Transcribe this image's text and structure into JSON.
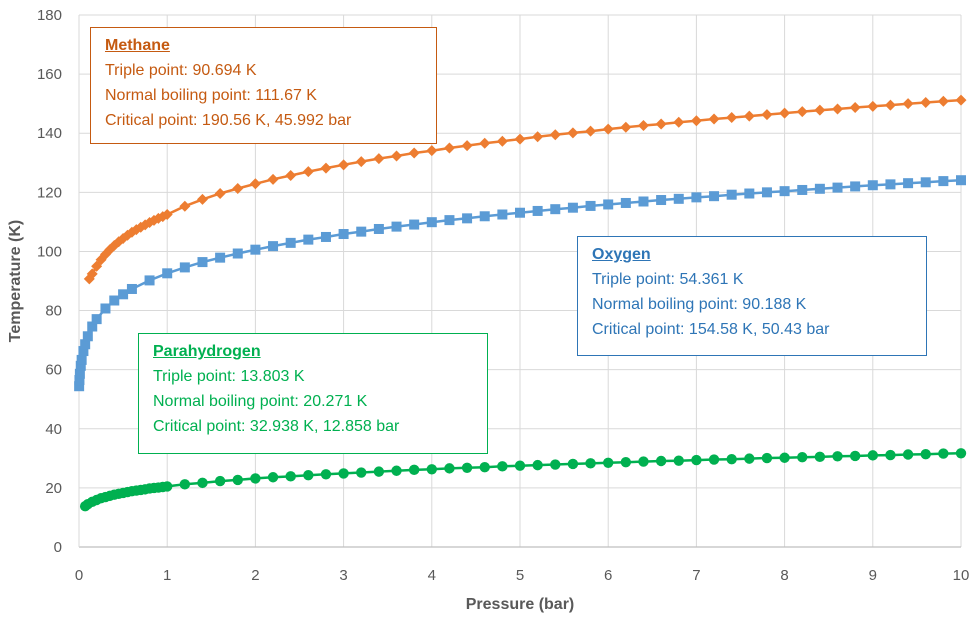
{
  "chart_data": {
    "type": "scatter",
    "xlabel": "Pressure (bar)",
    "ylabel": "Temperature (K)",
    "xlim": [
      0,
      10
    ],
    "ylim": [
      0,
      180
    ],
    "x_ticks": [
      "0",
      "1",
      "2",
      "3",
      "4",
      "5",
      "6",
      "7",
      "8",
      "9",
      "10"
    ],
    "y_ticks": [
      "0",
      "20",
      "40",
      "60",
      "80",
      "100",
      "120",
      "140",
      "160",
      "180"
    ],
    "grid": true,
    "legend": "none",
    "series": [
      {
        "key": "methane",
        "color": "#ed7d31",
        "marker": "diamond",
        "x": [
          0.117,
          0.15,
          0.2,
          0.25,
          0.3,
          0.35,
          0.4,
          0.45,
          0.5,
          0.55,
          0.6,
          0.65,
          0.7,
          0.75,
          0.8,
          0.85,
          0.9,
          0.95,
          1.0,
          1.2,
          1.4,
          1.6,
          1.8,
          2.0,
          2.2,
          2.4,
          2.6,
          2.8,
          3.0,
          3.2,
          3.4,
          3.6,
          3.8,
          4.0,
          4.2,
          4.4,
          4.6,
          4.8,
          5.0,
          5.2,
          5.4,
          5.6,
          5.8,
          6.0,
          6.2,
          6.4,
          6.6,
          6.8,
          7.0,
          7.2,
          7.4,
          7.6,
          7.8,
          8.0,
          8.2,
          8.4,
          8.6,
          8.8,
          9.0,
          9.2,
          9.4,
          9.6,
          9.8,
          10.0
        ],
        "y": [
          90.7,
          92.4,
          95.0,
          97.2,
          99.0,
          100.6,
          102.0,
          103.3,
          104.4,
          105.5,
          106.5,
          107.4,
          108.2,
          109.0,
          109.8,
          110.5,
          111.2,
          111.8,
          112.5,
          115.3,
          117.6,
          119.6,
          121.3,
          122.9,
          124.4,
          125.7,
          127.0,
          128.2,
          129.3,
          130.4,
          131.4,
          132.3,
          133.3,
          134.1,
          135.0,
          135.8,
          136.6,
          137.3,
          138.0,
          138.8,
          139.5,
          140.1,
          140.7,
          141.4,
          142.0,
          142.6,
          143.1,
          143.7,
          144.2,
          144.8,
          145.3,
          145.8,
          146.3,
          146.8,
          147.3,
          147.8,
          148.2,
          148.7,
          149.1,
          149.5,
          150.0,
          150.4,
          150.8,
          151.2
        ]
      },
      {
        "key": "oxygen",
        "color": "#5b9bd5",
        "marker": "square",
        "x": [
          0.0015,
          0.005,
          0.01,
          0.02,
          0.03,
          0.05,
          0.07,
          0.1,
          0.15,
          0.2,
          0.3,
          0.4,
          0.5,
          0.6,
          0.8,
          1.0,
          1.2,
          1.4,
          1.6,
          1.8,
          2.0,
          2.2,
          2.4,
          2.6,
          2.8,
          3.0,
          3.2,
          3.4,
          3.6,
          3.8,
          4.0,
          4.2,
          4.4,
          4.6,
          4.8,
          5.0,
          5.2,
          5.4,
          5.6,
          5.8,
          6.0,
          6.2,
          6.4,
          6.6,
          6.8,
          7.0,
          7.2,
          7.4,
          7.6,
          7.8,
          8.0,
          8.2,
          8.4,
          8.6,
          8.8,
          9.0,
          9.2,
          9.4,
          9.6,
          9.8,
          10.0
        ],
        "y": [
          54.4,
          56.5,
          58.6,
          61.3,
          63.3,
          66.3,
          68.6,
          71.3,
          74.6,
          77.1,
          80.7,
          83.4,
          85.5,
          87.3,
          90.2,
          92.6,
          94.6,
          96.4,
          97.9,
          99.3,
          100.6,
          101.8,
          102.9,
          104.0,
          104.9,
          105.9,
          106.7,
          107.6,
          108.4,
          109.1,
          109.9,
          110.6,
          111.2,
          111.9,
          112.5,
          113.1,
          113.7,
          114.3,
          114.8,
          115.4,
          115.9,
          116.4,
          116.9,
          117.4,
          117.8,
          118.3,
          118.7,
          119.2,
          119.6,
          120.0,
          120.4,
          120.8,
          121.2,
          121.6,
          122.0,
          122.4,
          122.7,
          123.1,
          123.4,
          123.8,
          124.1
        ]
      },
      {
        "key": "parahydrogen",
        "color": "#00b050",
        "marker": "circle",
        "x": [
          0.07,
          0.1,
          0.15,
          0.2,
          0.25,
          0.3,
          0.35,
          0.4,
          0.45,
          0.5,
          0.55,
          0.6,
          0.65,
          0.7,
          0.75,
          0.8,
          0.85,
          0.9,
          0.95,
          1.0,
          1.2,
          1.4,
          1.6,
          1.8,
          2.0,
          2.2,
          2.4,
          2.6,
          2.8,
          3.0,
          3.2,
          3.4,
          3.6,
          3.8,
          4.0,
          4.2,
          4.4,
          4.6,
          4.8,
          5.0,
          5.2,
          5.4,
          5.6,
          5.8,
          6.0,
          6.2,
          6.4,
          6.6,
          6.8,
          7.0,
          7.2,
          7.4,
          7.6,
          7.8,
          8.0,
          8.2,
          8.4,
          8.6,
          8.8,
          9.0,
          9.2,
          9.4,
          9.6,
          9.8,
          10.0
        ],
        "y": [
          13.8,
          14.5,
          15.3,
          15.9,
          16.5,
          16.9,
          17.3,
          17.7,
          18.0,
          18.3,
          18.6,
          18.9,
          19.1,
          19.3,
          19.5,
          19.8,
          20.0,
          20.1,
          20.3,
          20.5,
          21.2,
          21.7,
          22.3,
          22.7,
          23.2,
          23.6,
          23.9,
          24.3,
          24.6,
          24.9,
          25.2,
          25.5,
          25.8,
          26.1,
          26.3,
          26.6,
          26.8,
          27.0,
          27.3,
          27.5,
          27.7,
          27.9,
          28.1,
          28.3,
          28.5,
          28.7,
          28.9,
          29.1,
          29.2,
          29.4,
          29.6,
          29.7,
          29.9,
          30.1,
          30.2,
          30.4,
          30.5,
          30.7,
          30.8,
          31.0,
          31.1,
          31.3,
          31.4,
          31.6,
          31.7
        ]
      }
    ],
    "annotations": [
      {
        "key": "methane",
        "name": "Methane",
        "lines": [
          "Triple point: 90.694 K",
          "Normal boiling point: 111.67 K",
          "Critical point: 190.56 K, 45.992 bar"
        ],
        "color": "#c55a11"
      },
      {
        "key": "oxygen",
        "name": "Oxygen",
        "lines": [
          "Triple point: 54.361 K",
          "Normal boiling point: 90.188 K",
          "Critical point: 154.58 K, 50.43 bar"
        ],
        "color": "#2e75b6"
      },
      {
        "key": "parahydrogen",
        "name": "Parahydrogen",
        "lines": [
          "Triple point: 13.803 K",
          "Normal boiling point: 20.271 K",
          "Critical point: 32.938 K, 12.858 bar"
        ],
        "color": "#00b050"
      }
    ]
  }
}
